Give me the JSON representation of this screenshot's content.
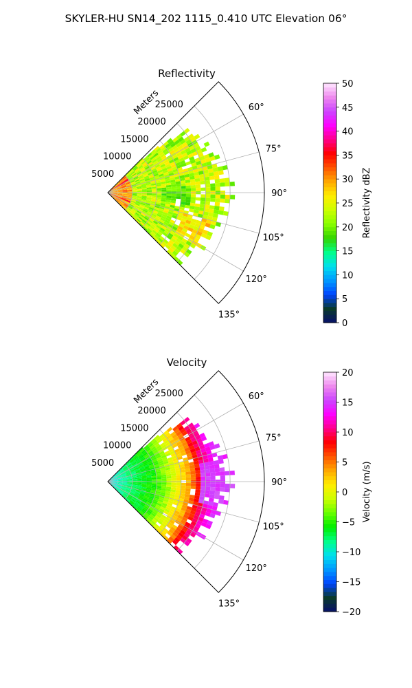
{
  "figure": {
    "suptitle": "SKYLER-HU  SN14_202  1115_0.410 UTC Elevation 06°"
  },
  "chart_data": [
    {
      "type": "heatmap",
      "projection": "polar-sector",
      "title": "Reflectivity",
      "radial_label": "Meters",
      "radial_ticks": [
        5000,
        10000,
        15000,
        20000,
        25000
      ],
      "radial_tick_labels": [
        "5000",
        "10000",
        "15000",
        "20000",
        "25000"
      ],
      "rlim": [
        0,
        32000
      ],
      "theta_ticks": [
        60,
        75,
        90,
        105,
        120,
        135
      ],
      "theta_tick_labels": [
        "60°",
        "75°",
        "90°",
        "105°",
        "120°",
        "135°"
      ],
      "theta_lim": [
        45,
        135
      ],
      "grid": true,
      "colorbar": {
        "label": "Reflectivity dBZ",
        "range": [
          0,
          50
        ],
        "ticks": [
          0,
          5,
          10,
          15,
          20,
          25,
          30,
          35,
          40,
          45,
          50
        ],
        "tick_labels": [
          "0",
          "5",
          "10",
          "15",
          "20",
          "25",
          "30",
          "35",
          "40",
          "45",
          "50"
        ],
        "colormap": [
          "#08106a",
          "#0a3a2a",
          "#0044ff",
          "#0099ff",
          "#00e0ee",
          "#00ff88",
          "#33d400",
          "#88ff00",
          "#ccff00",
          "#ffee00",
          "#ffaa00",
          "#ff5500",
          "#ff0000",
          "#ff0088",
          "#ff00ff",
          "#cc44ff",
          "#ee88ee",
          "#ffe8ff"
        ]
      },
      "field_summary": {
        "near_range_m": [
          0,
          5000
        ],
        "near_range_value": 30,
        "main_value": 23,
        "hotspot_value": 36,
        "low_echo_value": 19,
        "echo_max_range_m": 24500
      }
    },
    {
      "type": "heatmap",
      "projection": "polar-sector",
      "title": "Velocity",
      "radial_label": "Meters",
      "radial_ticks": [
        5000,
        10000,
        15000,
        20000,
        25000
      ],
      "radial_tick_labels": [
        "5000",
        "10000",
        "15000",
        "20000",
        "25000"
      ],
      "rlim": [
        0,
        32000
      ],
      "theta_ticks": [
        60,
        75,
        90,
        105,
        120,
        135
      ],
      "theta_tick_labels": [
        "60°",
        "75°",
        "90°",
        "105°",
        "120°",
        "135°"
      ],
      "theta_lim": [
        45,
        135
      ],
      "grid": true,
      "colorbar": {
        "label": "Velocity (m/s)",
        "range": [
          -20,
          20
        ],
        "ticks": [
          -20,
          -15,
          -10,
          -5,
          0,
          5,
          10,
          15,
          20
        ],
        "tick_labels": [
          "−20",
          "−15",
          "−10",
          "−5",
          "0",
          "5",
          "10",
          "15",
          "20"
        ],
        "colormap": [
          "#08106a",
          "#0a3a2a",
          "#0044ff",
          "#0099ff",
          "#00e0ee",
          "#00ff88",
          "#00ee00",
          "#66ff00",
          "#ccff00",
          "#ffee00",
          "#ffaa00",
          "#ff5500",
          "#ff0000",
          "#ff0088",
          "#ff00ff",
          "#cc44ff",
          "#ee88ee",
          "#ffe8ff"
        ]
      },
      "field_summary": {
        "near_range_value": -11,
        "gradient": [
          [
            0,
            -11
          ],
          [
            4000,
            -8
          ],
          [
            10000,
            -5
          ],
          [
            14000,
            0
          ],
          [
            17000,
            4
          ],
          [
            19000,
            9
          ],
          [
            22000,
            14
          ]
        ],
        "echo_max_range_m": 24500
      }
    }
  ]
}
